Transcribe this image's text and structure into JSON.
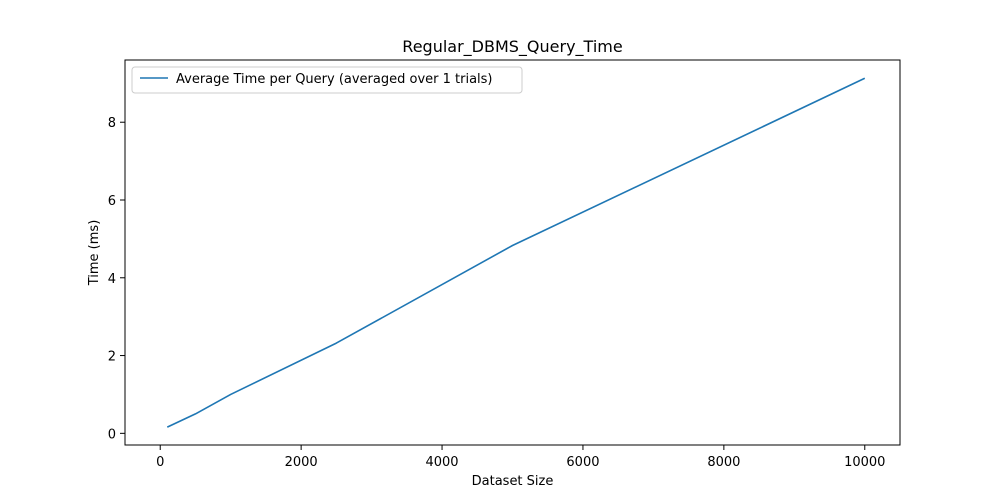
{
  "chart_data": {
    "type": "line",
    "title": "Regular_DBMS_Query_Time",
    "xlabel": "Dataset Size",
    "ylabel": "Time (ms)",
    "xlim": [
      -500,
      10500
    ],
    "ylim": [
      -0.3,
      9.6
    ],
    "xticks": [
      0,
      2000,
      4000,
      6000,
      8000,
      10000
    ],
    "yticks": [
      0,
      2,
      4,
      6,
      8
    ],
    "legend_position": "upper-left",
    "grid": false,
    "series": [
      {
        "name": "Average Time per Query (averaged over 1 trials)",
        "color": "#1f77b4",
        "x": [
          100,
          500,
          1000,
          2500,
          5000,
          10000
        ],
        "y": [
          0.16,
          0.5,
          1.0,
          2.32,
          4.83,
          9.13
        ]
      }
    ]
  }
}
